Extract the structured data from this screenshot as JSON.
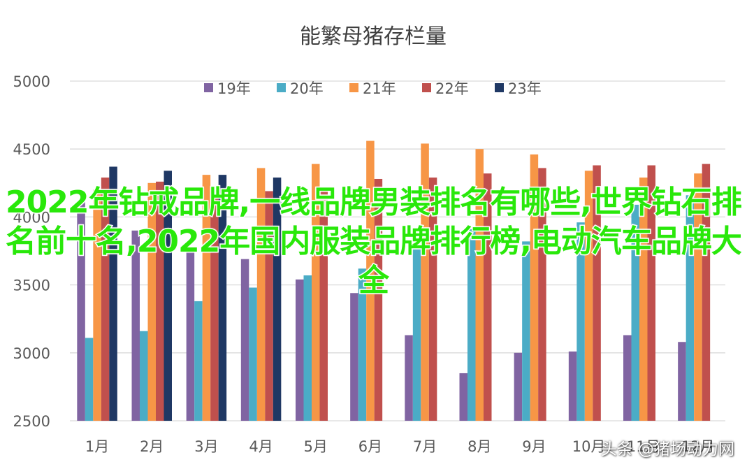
{
  "chart_data": {
    "type": "bar",
    "title": "能繁母猪存栏量",
    "categories": [
      "1月",
      "2月",
      "3月",
      "4月",
      "5月",
      "6月",
      "7月",
      "8月",
      "9月",
      "10月",
      "11月",
      "12月"
    ],
    "ylim": [
      2500,
      5000
    ],
    "yticks": [
      2500,
      3000,
      3500,
      4000,
      4500,
      5000
    ],
    "grid": true,
    "legend_position": "top",
    "series": [
      {
        "name": "19年",
        "color": "#8064a2",
        "values": [
          4110,
          3900,
          3780,
          3690,
          3540,
          3440,
          3130,
          2850,
          3000,
          3010,
          3130,
          3080
        ]
      },
      {
        "name": "20年",
        "color": "#4bacc6",
        "values": [
          3110,
          3160,
          3380,
          3480,
          3570,
          3620,
          3770,
          3910,
          3820,
          3960,
          4090,
          4160
        ]
      },
      {
        "name": "21年",
        "color": "#f79646",
        "values": [
          4200,
          4250,
          4310,
          4360,
          4390,
          4560,
          4540,
          4500,
          4460,
          4340,
          4290,
          4320
        ]
      },
      {
        "name": "22年",
        "color": "#c0504d",
        "values": [
          4290,
          4260,
          4180,
          4190,
          4190,
          4280,
          4290,
          4320,
          4360,
          4380,
          4380,
          4390
        ]
      },
      {
        "name": "23年",
        "color": "#1f3864",
        "values": [
          4370,
          4340,
          4310,
          4290,
          null,
          null,
          null,
          null,
          null,
          null,
          null,
          null
        ]
      }
    ]
  },
  "overlay_text": "2022年钻戒品牌,一线品牌男装排名有哪些,世界钻石排名前十名,2022年国内服装品牌排行榜,电动汽车品牌大全",
  "watermark": "头条 @猪场动力网"
}
